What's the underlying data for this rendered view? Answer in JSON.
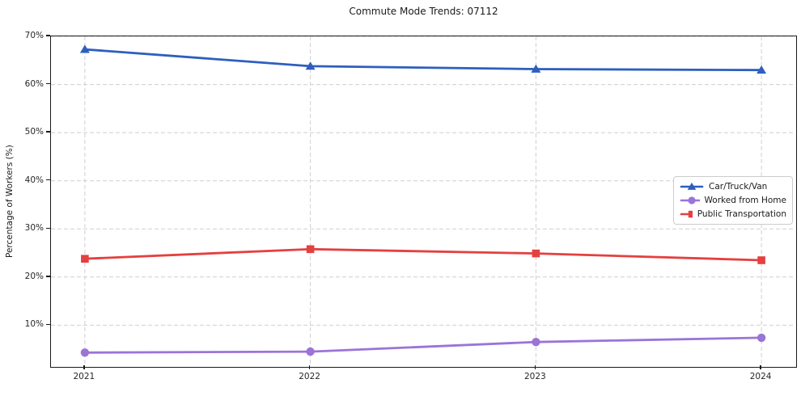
{
  "chart_data": {
    "type": "line",
    "title": "Commute Mode Trends: 07112",
    "xlabel": "",
    "ylabel": "Percentage of Workers (%)",
    "categories": [
      "2021",
      "2022",
      "2023",
      "2024"
    ],
    "series": [
      {
        "name": "Car/Truck/Van",
        "color": "#2d5fbe",
        "marker": "triangle",
        "values": [
          67.3,
          63.8,
          63.2,
          63.0
        ]
      },
      {
        "name": "Worked from Home",
        "color": "#9b74d8",
        "marker": "circle",
        "values": [
          4.3,
          4.5,
          6.5,
          7.4
        ]
      },
      {
        "name": "Public Transportation",
        "color": "#e4403f",
        "marker": "square",
        "values": [
          23.8,
          25.8,
          24.9,
          23.5
        ]
      }
    ],
    "y_ticks": [
      "10%",
      "20%",
      "30%",
      "40%",
      "50%",
      "60%",
      "70%"
    ],
    "y_tick_values": [
      10,
      20,
      30,
      40,
      50,
      60,
      70
    ],
    "ylim": [
      1.5,
      70
    ],
    "grid": true,
    "grid_color": "#cfcfcf",
    "axis_color": "#1a1a1a",
    "legend_position": "center right",
    "legend_entries": [
      "Car/Truck/Van",
      "Worked from Home",
      "Public Transportation"
    ]
  }
}
